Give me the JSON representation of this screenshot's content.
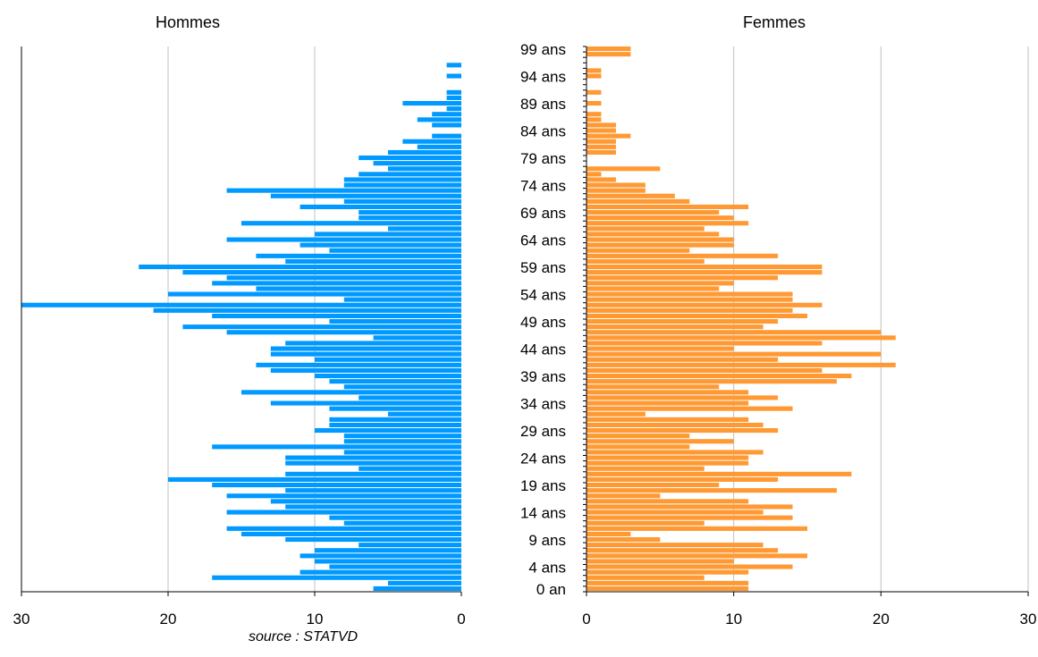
{
  "source": "source : STATVD",
  "colors": {
    "hommes": "#0099FF",
    "femmes": "#FF9933",
    "grid": "#C0C0C0",
    "axis": "#000000"
  },
  "chart_data": [
    {
      "type": "bar",
      "orientation": "horizontal",
      "title": "Hommes",
      "direction": "right-to-left",
      "xlim": [
        0,
        30
      ],
      "x_ticks": [
        "30",
        "20",
        "10",
        "0"
      ],
      "grid": true,
      "ages": [
        0,
        1,
        2,
        3,
        4,
        5,
        6,
        7,
        8,
        9,
        10,
        11,
        12,
        13,
        14,
        15,
        16,
        17,
        18,
        19,
        20,
        21,
        22,
        23,
        24,
        25,
        26,
        27,
        28,
        29,
        30,
        31,
        32,
        33,
        34,
        35,
        36,
        37,
        38,
        39,
        40,
        41,
        42,
        43,
        44,
        45,
        46,
        47,
        48,
        49,
        50,
        51,
        52,
        53,
        54,
        55,
        56,
        57,
        58,
        59,
        60,
        61,
        62,
        63,
        64,
        65,
        66,
        67,
        68,
        69,
        70,
        71,
        72,
        73,
        74,
        75,
        76,
        77,
        78,
        79,
        80,
        81,
        82,
        83,
        84,
        85,
        86,
        87,
        88,
        89,
        90,
        91,
        92,
        93,
        94,
        95,
        96,
        97,
        98,
        99
      ],
      "values": [
        6,
        5,
        17,
        11,
        9,
        10,
        11,
        10,
        7,
        12,
        15,
        16,
        8,
        9,
        16,
        12,
        13,
        16,
        12,
        17,
        20,
        12,
        7,
        12,
        12,
        8,
        17,
        8,
        8,
        10,
        9,
        9,
        5,
        9,
        13,
        7,
        15,
        8,
        9,
        10,
        13,
        14,
        10,
        13,
        13,
        12,
        6,
        16,
        19,
        9,
        17,
        21,
        30,
        8,
        20,
        14,
        17,
        16,
        19,
        22,
        12,
        14,
        9,
        11,
        16,
        10,
        5,
        15,
        7,
        7,
        11,
        8,
        13,
        16,
        8,
        8,
        7,
        5,
        6,
        7,
        5,
        3,
        4,
        2,
        0,
        2,
        3,
        2,
        1,
        4,
        1,
        1,
        0,
        0,
        1,
        0,
        1,
        0,
        0,
        0
      ]
    },
    {
      "type": "bar",
      "orientation": "horizontal",
      "title": "Femmes",
      "xlim": [
        0,
        30
      ],
      "x_ticks": [
        "0",
        "10",
        "20",
        "30"
      ],
      "y_ticks": [
        "0 an",
        "4 ans",
        "9 ans",
        "14 ans",
        "19 ans",
        "24 ans",
        "29 ans",
        "34 ans",
        "39 ans",
        "44 ans",
        "49 ans",
        "54 ans",
        "59 ans",
        "64 ans",
        "69 ans",
        "74 ans",
        "79 ans",
        "84 ans",
        "89 ans",
        "94 ans",
        "99 ans"
      ],
      "grid": true,
      "ages": [
        0,
        1,
        2,
        3,
        4,
        5,
        6,
        7,
        8,
        9,
        10,
        11,
        12,
        13,
        14,
        15,
        16,
        17,
        18,
        19,
        20,
        21,
        22,
        23,
        24,
        25,
        26,
        27,
        28,
        29,
        30,
        31,
        32,
        33,
        34,
        35,
        36,
        37,
        38,
        39,
        40,
        41,
        42,
        43,
        44,
        45,
        46,
        47,
        48,
        49,
        50,
        51,
        52,
        53,
        54,
        55,
        56,
        57,
        58,
        59,
        60,
        61,
        62,
        63,
        64,
        65,
        66,
        67,
        68,
        69,
        70,
        71,
        72,
        73,
        74,
        75,
        76,
        77,
        78,
        79,
        80,
        81,
        82,
        83,
        84,
        85,
        86,
        87,
        88,
        89,
        90,
        91,
        92,
        93,
        94,
        95,
        96,
        97,
        98,
        99
      ],
      "values": [
        11,
        11,
        8,
        11,
        14,
        10,
        15,
        13,
        12,
        5,
        3,
        15,
        8,
        14,
        12,
        14,
        11,
        5,
        17,
        9,
        13,
        18,
        8,
        11,
        11,
        12,
        7,
        10,
        7,
        13,
        12,
        11,
        4,
        14,
        11,
        13,
        11,
        9,
        17,
        18,
        16,
        21,
        13,
        20,
        10,
        16,
        21,
        20,
        12,
        13,
        15,
        14,
        16,
        14,
        14,
        9,
        10,
        13,
        16,
        16,
        8,
        13,
        7,
        10,
        10,
        9,
        8,
        11,
        10,
        9,
        11,
        7,
        6,
        4,
        4,
        2,
        1,
        5,
        0,
        0,
        2,
        2,
        2,
        3,
        2,
        2,
        1,
        1,
        0,
        1,
        0,
        1,
        0,
        0,
        1,
        1,
        0,
        0,
        3,
        3
      ]
    }
  ]
}
